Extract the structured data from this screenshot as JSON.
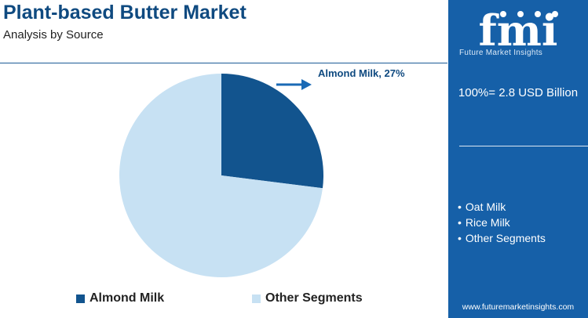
{
  "header": {
    "title": "Plant-based Butter Market",
    "subtitle": "Analysis by Source"
  },
  "chart_data": {
    "type": "pie",
    "categories": [
      "Almond Milk",
      "Other Segments"
    ],
    "values": [
      27,
      73
    ],
    "unit": "%",
    "colors": [
      "#12548e",
      "#c7e1f3"
    ],
    "callout": "Almond Milk, 27%",
    "legend": [
      "Almond Milk",
      "Other Segments"
    ],
    "legend_position": "bottom"
  },
  "sidebar": {
    "logo_text": "fmi",
    "logo_tagline": "Future Market Insights",
    "total": "100%= 2.8 USD Billion",
    "other_segments": [
      "Oat Milk",
      "Rice Milk",
      "Other Segments"
    ],
    "website": "www.futuremarketinsights.com"
  },
  "colors": {
    "title": "#0f4a80",
    "panel": "#1660a8",
    "arrow": "#1a6ab5"
  },
  "icons": {
    "logo": "fmi-logo-icon",
    "arrow": "arrow-right-icon"
  }
}
